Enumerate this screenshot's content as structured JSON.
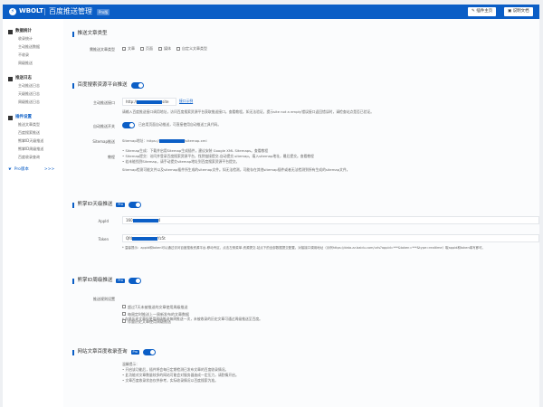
{
  "header": {
    "brand": "WBOLT",
    "title": "百度推送管理",
    "version": "Pro版",
    "btn_help": "插件主页",
    "btn_docs": "说明文档"
  },
  "sidebar": {
    "groups": [
      {
        "label": "数据统计",
        "items": [
          "收录统计",
          "主动推送数据",
          "不收录",
          "周级推送"
        ]
      },
      {
        "label": "推送日志",
        "items": [
          "主动推送日志",
          "天级推送日志",
          "周级推送日志"
        ]
      },
      {
        "label": "插件设置",
        "items": [
          "推送文章类型",
          "百度搜索推送",
          "熊掌ID天级推送",
          "熊掌ID周级推送",
          "百度收录查询"
        ]
      }
    ],
    "pro": "Pro版本",
    "pro_arrow": ">>>"
  },
  "s1": {
    "title": "推送文章类型",
    "label": "需推送文章类型",
    "options": [
      {
        "label": "文章",
        "checked": true
      },
      {
        "label": "页面",
        "checked": false
      },
      {
        "label": "媒体",
        "checked": false
      },
      {
        "label": "自定义文章类型",
        "checked": false
      }
    ]
  },
  "s2": {
    "title": "百度搜索资源平台推送",
    "enabled": true,
    "api_label": "主动推送接口",
    "api_prefix": "http://",
    "api_suffix": "site",
    "api_link": "接口示例",
    "api_hint": "请输入百度推送接口调用地址，访问百度搜索资源平台获取推送接口。查看教程。如无法验证，提示site not a empty错误接口返回错误时，请检查站点是否已验证。",
    "api_hint_link": "查看教程",
    "auto_label": "自动推送开关",
    "auto_enabled": true,
    "auto_text": "已启用页面自动推送，可直接使用自动推送工具代码。",
    "sitemap_label": "Sitemap推送",
    "sitemap_prefix": "Sitemap地址：https://",
    "sitemap_suffix": "/sitemap.xml",
    "tutorial_label": "教程",
    "tutorial": [
      "Sitemap生成：下载并启用Sitemap生成插件，建议安装 Google XML Sitemaps。查看教程",
      "Sitemap提交：访问并登录百度搜索资源平台，找到链接提交-自动提交-sitemap，填入sitemap地址，最后提交。查看教程",
      "若未能找到Sitemap，请手动提交sitemap地址到百度搜索资源平台提交。"
    ],
    "tutorial_note": "Sitemap检测可能文件以及sitemap插件所生成的sitemap文件。如无法检测，可能存在其他sitemap插件或者无法检测到所有生成的sitemap文件。",
    "tutorial_link": "查看教程"
  },
  "s3": {
    "title": "熊掌ID天级推送",
    "badge": "Pro",
    "enabled": true,
    "appid_label": "AppId",
    "appid_prefix": "160",
    "appid_suffix": "4",
    "token_label": "Token",
    "token_prefix": "Qfd",
    "token_suffix": "Yz5t",
    "hint": "* 温馨提示：appid和token可以通过访问百度搜索资源平台-移动专区，点击左侧菜单-资源提交-站点下的全部数据提交配置。对接接口调用地址（示例https://data.zz.baidu.com/urls?appid=***&token=***&type=realtime）取appid和token填写即可。",
    "hint_link": "百度搜索资源平台-移动专区"
  },
  "s4": {
    "title": "熊掌ID周级推送",
    "badge": "Pro",
    "enabled": true,
    "label": "推送规则设置",
    "options": [
      "超过7天未被推送的文章使用周级推送",
      "每周定时推送上一周新发布的文章数据",
      "存量历史文章使用周级推送"
    ],
    "hint": "* 存量历史文章仅使用周级推送每周推送一次，未被收录的历史文章可通过周级推送至百度。"
  },
  "s5": {
    "title": "网站文章百度收录查询",
    "badge": "Pro",
    "enabled": true,
    "hint_title": "温馨提示：",
    "hints": [
      "开启该功能后，插件将会每日定期检测已发布文章的百度收录情况。",
      "此功能对文章数量较多的网站可能会对服务器造成一定压力，请酌情开启。",
      "文章百度收录状态仅供参考，实际收录情况以百度搜索为准。"
    ]
  },
  "colors": {
    "brand": "#0b5ec6"
  }
}
